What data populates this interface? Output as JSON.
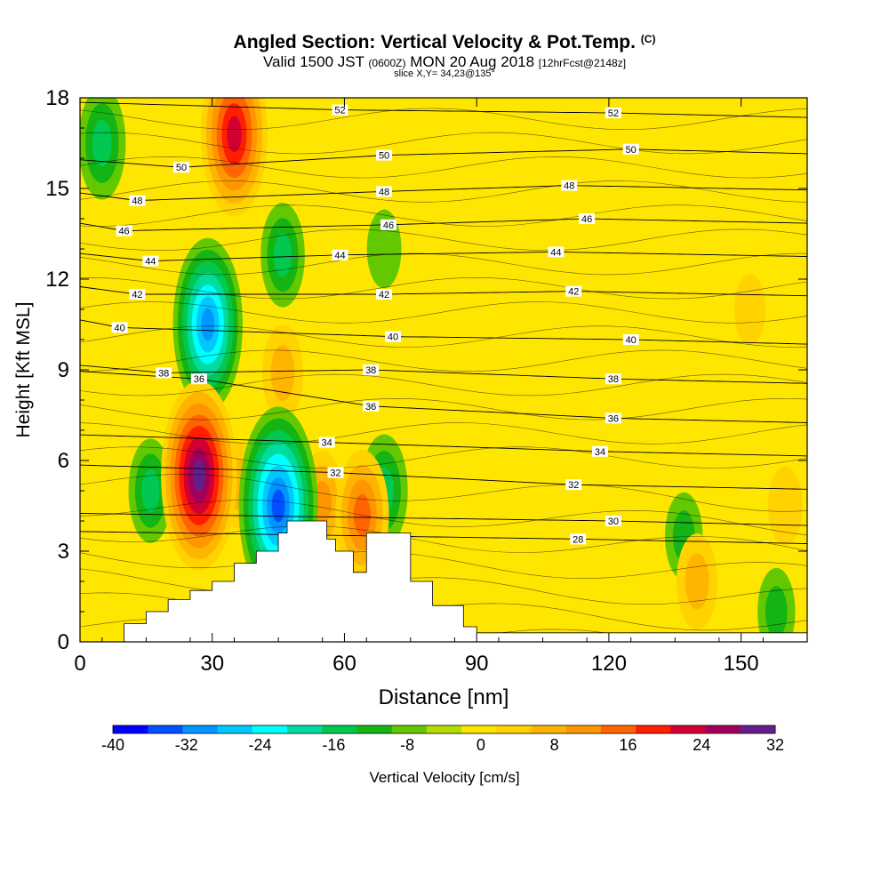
{
  "header": {
    "title": "Angled Section: Vertical Velocity & Pot.Temp.",
    "title_unit": "(C)",
    "subtitle_a": "Valid 1500 JST",
    "subtitle_utc": "(0600Z)",
    "subtitle_b": "MON 20 Aug 2018",
    "subtitle_fcst": "[12hrFcst@2148z]",
    "slice": "slice X,Y= 34,23@135°"
  },
  "chart_data": {
    "type": "heatmap",
    "xlabel": "Distance [nm]",
    "ylabel": "Height [Kft MSL]",
    "xlim": [
      0,
      165
    ],
    "ylim": [
      0,
      18
    ],
    "xticks": [
      0,
      30,
      60,
      90,
      120,
      150
    ],
    "yticks": [
      0,
      3,
      6,
      9,
      12,
      15,
      18
    ],
    "colorbar": {
      "label": "Vertical Velocity [cm/s]",
      "ticks": [
        -40,
        -32,
        -24,
        -16,
        -8,
        0,
        8,
        16,
        24,
        32
      ],
      "levels": [
        -40,
        -36,
        -32,
        -28,
        -24,
        -20,
        -16,
        -12,
        -8,
        -4,
        0,
        4,
        8,
        12,
        16,
        20,
        24,
        28,
        32
      ],
      "colors": [
        "#0000ff",
        "#0050ff",
        "#0096ff",
        "#00c8ff",
        "#00ffff",
        "#00dca0",
        "#00c850",
        "#14b414",
        "#64c800",
        "#b4dc00",
        "#ffe600",
        "#ffd200",
        "#ffb400",
        "#ff9600",
        "#ff6400",
        "#ff1e00",
        "#d20032",
        "#a0005a",
        "#641e8c"
      ]
    },
    "velocity_features": [
      {
        "sign": "up",
        "x": 35,
        "y": 16.8,
        "peak": 26
      },
      {
        "sign": "up",
        "x": 27,
        "y": 5.5,
        "peak": 32
      },
      {
        "sign": "up",
        "x": 36,
        "y": 5.2,
        "peak": 8
      },
      {
        "sign": "up",
        "x": 64,
        "y": 4.2,
        "peak": 18
      },
      {
        "sign": "up",
        "x": 55,
        "y": 4.6,
        "peak": 12
      },
      {
        "sign": "up",
        "x": 46,
        "y": 8.9,
        "peak": 10
      },
      {
        "sign": "up",
        "x": 140,
        "y": 2.0,
        "peak": 10
      },
      {
        "sign": "up",
        "x": 160,
        "y": 4.5,
        "peak": 6
      },
      {
        "sign": "up",
        "x": 152,
        "y": 11.0,
        "peak": 4
      },
      {
        "sign": "down",
        "x": 29,
        "y": 10.5,
        "peak": -28
      },
      {
        "sign": "down",
        "x": 45,
        "y": 4.5,
        "peak": -34
      },
      {
        "sign": "down",
        "x": 46,
        "y": 12.8,
        "peak": -12
      },
      {
        "sign": "down",
        "x": 69,
        "y": 13.0,
        "peak": -6
      },
      {
        "sign": "down",
        "x": 69,
        "y": 5.0,
        "peak": -14
      },
      {
        "sign": "down",
        "x": 5,
        "y": 16.5,
        "peak": -14
      },
      {
        "sign": "down",
        "x": 16,
        "y": 5.0,
        "peak": -12
      },
      {
        "sign": "down",
        "x": 137,
        "y": 3.5,
        "peak": -8
      },
      {
        "sign": "down",
        "x": 158,
        "y": 1.0,
        "peak": -8
      }
    ],
    "terrain": [
      [
        10,
        0.6
      ],
      [
        15,
        1.0
      ],
      [
        20,
        1.4
      ],
      [
        25,
        1.7
      ],
      [
        30,
        2.0
      ],
      [
        35,
        2.6
      ],
      [
        40,
        3.0
      ],
      [
        45,
        3.6
      ],
      [
        47,
        4.0
      ],
      [
        52,
        4.0
      ],
      [
        56,
        3.4
      ],
      [
        58,
        3.0
      ],
      [
        62,
        2.3
      ],
      [
        65,
        3.6
      ],
      [
        71,
        3.6
      ],
      [
        75,
        2.0
      ],
      [
        80,
        1.2
      ],
      [
        87,
        0.5
      ],
      [
        90,
        0.3
      ],
      [
        165,
        0.3
      ]
    ],
    "theta_contours": [
      {
        "value": 28,
        "label_at": [
          113,
          3.4
        ]
      },
      {
        "value": 30,
        "label_at": [
          121,
          4.0
        ]
      },
      {
        "value": 32,
        "label_at": [
          58,
          5.6
        ]
      },
      {
        "value": 32,
        "label_at": [
          112,
          5.2
        ]
      },
      {
        "value": 34,
        "label_at": [
          56,
          6.6
        ]
      },
      {
        "value": 34,
        "label_at": [
          118,
          6.3
        ]
      },
      {
        "value": 36,
        "label_at": [
          27,
          8.7
        ]
      },
      {
        "value": 36,
        "label_at": [
          66,
          7.8
        ]
      },
      {
        "value": 36,
        "label_at": [
          121,
          7.4
        ]
      },
      {
        "value": 38,
        "label_at": [
          19,
          8.9
        ]
      },
      {
        "value": 38,
        "label_at": [
          66,
          9.0
        ]
      },
      {
        "value": 38,
        "label_at": [
          121,
          8.7
        ]
      },
      {
        "value": 40,
        "label_at": [
          9,
          10.4
        ]
      },
      {
        "value": 40,
        "label_at": [
          71,
          10.1
        ]
      },
      {
        "value": 40,
        "label_at": [
          125,
          10.0
        ]
      },
      {
        "value": 42,
        "label_at": [
          13,
          11.5
        ]
      },
      {
        "value": 42,
        "label_at": [
          69,
          11.5
        ]
      },
      {
        "value": 42,
        "label_at": [
          112,
          11.6
        ]
      },
      {
        "value": 44,
        "label_at": [
          16,
          12.6
        ]
      },
      {
        "value": 44,
        "label_at": [
          59,
          12.8
        ]
      },
      {
        "value": 44,
        "label_at": [
          108,
          12.9
        ]
      },
      {
        "value": 46,
        "label_at": [
          10,
          13.6
        ]
      },
      {
        "value": 46,
        "label_at": [
          70,
          13.8
        ]
      },
      {
        "value": 46,
        "label_at": [
          115,
          14.0
        ]
      },
      {
        "value": 48,
        "label_at": [
          13,
          14.6
        ]
      },
      {
        "value": 48,
        "label_at": [
          69,
          14.9
        ]
      },
      {
        "value": 48,
        "label_at": [
          111,
          15.1
        ]
      },
      {
        "value": 50,
        "label_at": [
          23,
          15.7
        ]
      },
      {
        "value": 50,
        "label_at": [
          69,
          16.1
        ]
      },
      {
        "value": 50,
        "label_at": [
          125,
          16.3
        ]
      },
      {
        "value": 52,
        "label_at": [
          59,
          17.6
        ]
      },
      {
        "value": 52,
        "label_at": [
          121,
          17.5
        ]
      }
    ]
  }
}
